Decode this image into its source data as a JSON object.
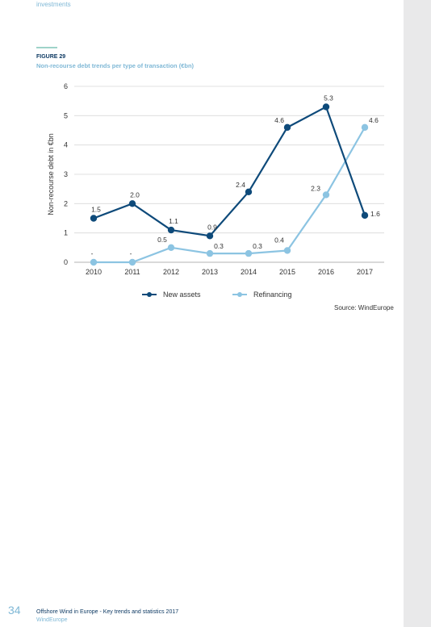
{
  "header": {
    "section": "investments"
  },
  "figure": {
    "label": "FIGURE 29",
    "title": "Non-recourse debt trends per type of transaction (€bn)"
  },
  "colors": {
    "new_assets": "#0e4a7a",
    "refinancing": "#8cc4e2",
    "grid": "#d9d9d9",
    "text": "#333333"
  },
  "chart_data": {
    "type": "line",
    "x": [
      "2010",
      "2011",
      "2012",
      "2013",
      "2014",
      "2015",
      "2016",
      "2017"
    ],
    "ylabel": "Non-recourse debt in €bn",
    "xlabel": "",
    "ylim": [
      0,
      6
    ],
    "yticks": [
      "0",
      "1",
      "2",
      "3",
      "4",
      "5",
      "6"
    ],
    "grid": true,
    "legend_position": "bottom",
    "series": [
      {
        "name": "New assets",
        "values": [
          1.5,
          2.0,
          1.1,
          0.9,
          2.4,
          4.6,
          5.3,
          1.6
        ],
        "labels": [
          "1.5",
          "2.0",
          "1.1",
          "0.9",
          "2.4",
          "4.6",
          "5.3",
          "1.6"
        ]
      },
      {
        "name": "Refinancing",
        "values": [
          0,
          0,
          0.5,
          0.3,
          0.3,
          0.4,
          2.3,
          4.6
        ],
        "labels": [
          "-",
          "-",
          "0.5",
          "0.3",
          "0.3",
          "0.4",
          "2.3",
          "4.6"
        ]
      }
    ]
  },
  "legend": {
    "new_assets": "New assets",
    "refinancing": "Refinancing"
  },
  "source": "Source: WindEurope",
  "footer": {
    "page_number": "34",
    "title": "Offshore Wind in Europe - Key trends and statistics 2017",
    "org": "WindEurope"
  }
}
